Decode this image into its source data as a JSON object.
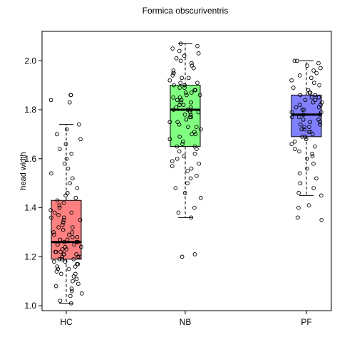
{
  "chart_data": {
    "type": "box",
    "title": "Formica obscuriventris",
    "xlabel": "",
    "ylabel": "head width",
    "ylim": [
      0.98,
      2.12
    ],
    "yticks": [
      1.0,
      1.2,
      1.4,
      1.6,
      1.8,
      2.0
    ],
    "ytick_labels": [
      "1.0",
      "1.2",
      "1.4",
      "1.6",
      "1.8",
      "2.0"
    ],
    "categories": [
      "HC",
      "NB",
      "PF"
    ],
    "grid": false,
    "legend": "none",
    "boxes": [
      {
        "category": "HC",
        "color": "#ff8080",
        "whisker_low": 1.01,
        "q1": 1.19,
        "median": 1.26,
        "q3": 1.43,
        "whisker_high": 1.74,
        "outliers": [
          1.83,
          1.84,
          1.86,
          1.86
        ]
      },
      {
        "category": "NB",
        "color": "#80ff80",
        "whisker_low": 1.36,
        "q1": 1.65,
        "median": 1.8,
        "q3": 1.9,
        "whisker_high": 2.07,
        "outliers": [
          1.2,
          1.21
        ]
      },
      {
        "category": "PF",
        "color": "#8080ff",
        "whisker_low": 1.45,
        "q1": 1.69,
        "median": 1.78,
        "q3": 1.86,
        "whisker_high": 2.0,
        "outliers": [
          1.35,
          1.36,
          1.4,
          1.41
        ]
      }
    ],
    "points": [
      {
        "category": "HC",
        "values": [
          1.01,
          1.02,
          1.04,
          1.05,
          1.06,
          1.07,
          1.08,
          1.09,
          1.1,
          1.11,
          1.12,
          1.13,
          1.13,
          1.14,
          1.15,
          1.15,
          1.16,
          1.16,
          1.17,
          1.17,
          1.18,
          1.18,
          1.19,
          1.19,
          1.19,
          1.2,
          1.2,
          1.2,
          1.21,
          1.21,
          1.21,
          1.22,
          1.22,
          1.22,
          1.23,
          1.23,
          1.24,
          1.24,
          1.25,
          1.25,
          1.26,
          1.26,
          1.26,
          1.27,
          1.27,
          1.28,
          1.28,
          1.29,
          1.29,
          1.3,
          1.3,
          1.31,
          1.32,
          1.32,
          1.33,
          1.34,
          1.35,
          1.35,
          1.36,
          1.36,
          1.37,
          1.38,
          1.38,
          1.39,
          1.4,
          1.41,
          1.42,
          1.43,
          1.44,
          1.45,
          1.46,
          1.48,
          1.5,
          1.52,
          1.54,
          1.56,
          1.58,
          1.6,
          1.62,
          1.64,
          1.66,
          1.68,
          1.7,
          1.72,
          1.74,
          1.83,
          1.84,
          1.86,
          1.86
        ]
      },
      {
        "category": "NB",
        "values": [
          1.2,
          1.21,
          1.36,
          1.38,
          1.4,
          1.44,
          1.46,
          1.48,
          1.5,
          1.52,
          1.53,
          1.55,
          1.56,
          1.57,
          1.58,
          1.59,
          1.6,
          1.61,
          1.62,
          1.63,
          1.64,
          1.65,
          1.65,
          1.66,
          1.67,
          1.68,
          1.69,
          1.7,
          1.7,
          1.71,
          1.72,
          1.73,
          1.73,
          1.74,
          1.75,
          1.75,
          1.76,
          1.77,
          1.77,
          1.78,
          1.78,
          1.79,
          1.79,
          1.8,
          1.8,
          1.8,
          1.81,
          1.81,
          1.82,
          1.82,
          1.83,
          1.83,
          1.84,
          1.84,
          1.85,
          1.85,
          1.86,
          1.86,
          1.87,
          1.87,
          1.88,
          1.88,
          1.89,
          1.89,
          1.9,
          1.9,
          1.91,
          1.91,
          1.92,
          1.93,
          1.93,
          1.94,
          1.95,
          1.95,
          1.96,
          1.97,
          1.98,
          1.99,
          2.0,
          2.01,
          2.02,
          2.03,
          2.04,
          2.05,
          2.06,
          2.07
        ]
      },
      {
        "category": "PF",
        "values": [
          1.35,
          1.36,
          1.4,
          1.41,
          1.45,
          1.46,
          1.48,
          1.5,
          1.52,
          1.54,
          1.56,
          1.58,
          1.6,
          1.61,
          1.62,
          1.63,
          1.64,
          1.65,
          1.66,
          1.67,
          1.68,
          1.69,
          1.69,
          1.7,
          1.71,
          1.71,
          1.72,
          1.72,
          1.73,
          1.73,
          1.74,
          1.74,
          1.75,
          1.75,
          1.76,
          1.76,
          1.77,
          1.77,
          1.78,
          1.78,
          1.78,
          1.79,
          1.79,
          1.8,
          1.8,
          1.81,
          1.81,
          1.82,
          1.82,
          1.83,
          1.83,
          1.84,
          1.84,
          1.85,
          1.85,
          1.86,
          1.86,
          1.87,
          1.87,
          1.88,
          1.89,
          1.9,
          1.91,
          1.92,
          1.93,
          1.94,
          1.95,
          1.96,
          1.97,
          1.98,
          1.99,
          2.0,
          2.0
        ]
      }
    ]
  }
}
